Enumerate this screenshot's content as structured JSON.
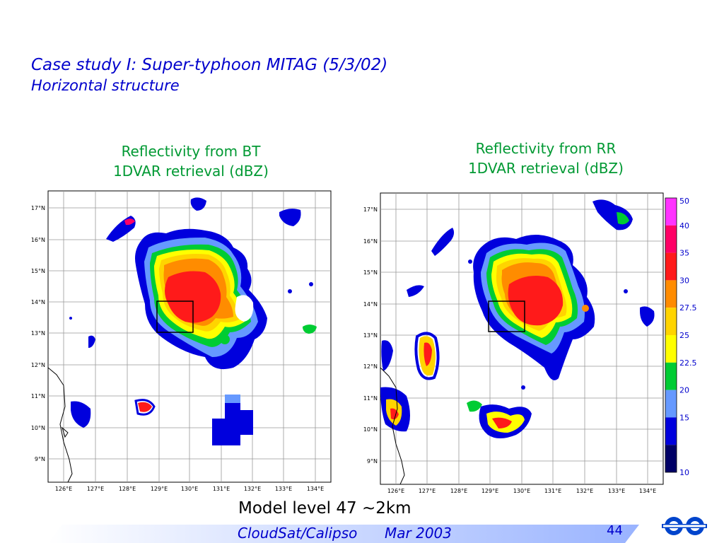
{
  "slide": {
    "title": "Case study I: Super-typhoon MITAG (5/3/02)",
    "subtitle": "Horizontal structure",
    "caption": "Model level 47 ~2km",
    "footer_left": "CloudSat/Calipso",
    "footer_date": "Mar 2003",
    "page_number": "44"
  },
  "panels": {
    "left": {
      "title_line1": "Reflectivity from BT",
      "title_line2": "1DVAR retrieval (dBZ)"
    },
    "right": {
      "title_line1": "Reflectivity from RR",
      "title_line2": "1DVAR retrieval (dBZ)"
    }
  },
  "colors": {
    "title_blue": "#0000cc",
    "panel_title_green": "#009933",
    "footer_gradient_start": "#ffffff",
    "footer_gradient_end": "#99b3ff"
  },
  "chart_data": [
    {
      "type": "heatmap",
      "panel": "left",
      "title": "Reflectivity from BT 1DVAR retrieval (dBZ)",
      "x_ticks": [
        "126°E",
        "127°E",
        "128°E",
        "129°E",
        "130°E",
        "131°E",
        "132°E",
        "133°E",
        "134°E"
      ],
      "y_ticks": [
        "17°N",
        "16°N",
        "15°N",
        "14°N",
        "13°N",
        "12°N",
        "11°N",
        "10°N",
        "9°N"
      ],
      "grid": true,
      "highlight_box": {
        "lon": [
          129,
          130
        ],
        "lat": [
          13,
          14
        ]
      },
      "max_reflectivity_region": {
        "lon_center": 130.0,
        "lat_center": 14.1,
        "dbz": 35
      }
    },
    {
      "type": "heatmap",
      "panel": "right",
      "title": "Reflectivity from RR 1DVAR retrieval (dBZ)",
      "x_ticks": [
        "126°E",
        "127°E",
        "128°E",
        "129°E",
        "130°E",
        "131°E",
        "132°E",
        "133°E",
        "134°E"
      ],
      "y_ticks": [
        "17°N",
        "16°N",
        "15°N",
        "14°N",
        "13°N",
        "12°N",
        "11°N",
        "10°N",
        "9°N"
      ],
      "grid": true,
      "highlight_box": {
        "lon": [
          129,
          130
        ],
        "lat": [
          13,
          14
        ]
      },
      "max_reflectivity_region": {
        "lon_center": 130.5,
        "lat_center": 14.1,
        "dbz": 35
      }
    }
  ],
  "colorbar": {
    "labels": [
      "50",
      "40",
      "35",
      "30",
      "27.5",
      "25",
      "22.5",
      "20",
      "15",
      "10"
    ],
    "colors": [
      "#ff33ff",
      "#ff0066",
      "#ff1a1a",
      "#ff8c00",
      "#ffd400",
      "#ffff00",
      "#00cc33",
      "#6699ff",
      "#0000dd",
      "#000066"
    ]
  }
}
